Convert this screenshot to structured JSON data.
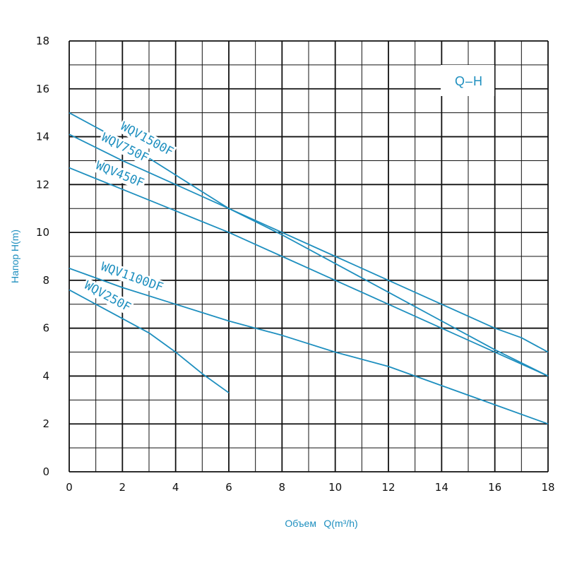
{
  "chart_data": {
    "type": "line",
    "title": "",
    "xlabel": "Объем",
    "xlabel_unit": "Q(m³/h)",
    "ylabel": "Напор H(m)",
    "xlim": [
      0,
      18
    ],
    "ylim": [
      0,
      18
    ],
    "x_ticks": [
      "0",
      "2",
      "4",
      "6",
      "8",
      "10",
      "12",
      "14",
      "16",
      "18"
    ],
    "y_ticks": [
      "0",
      "2",
      "4",
      "6",
      "8",
      "10",
      "12",
      "14",
      "16",
      "18"
    ],
    "grid": true,
    "annotation": "Q–H",
    "colors": {
      "series": "#1e8fbf",
      "grid": "#111111",
      "text": "#111111",
      "label": "#1e8fbf"
    },
    "series": [
      {
        "name": "WQV1500F",
        "points": [
          [
            0,
            15.0
          ],
          [
            2,
            13.8
          ],
          [
            4,
            12.4
          ],
          [
            6,
            11.0
          ],
          [
            8,
            10.0
          ],
          [
            10,
            9.0
          ],
          [
            12,
            8.0
          ],
          [
            14,
            7.0
          ],
          [
            16,
            6.0
          ],
          [
            17,
            5.6
          ],
          [
            18,
            5.0
          ]
        ]
      },
      {
        "name": "WQV750F",
        "points": [
          [
            0,
            14.1
          ],
          [
            2,
            13.0
          ],
          [
            4,
            12.0
          ],
          [
            6,
            11.0
          ],
          [
            8,
            9.9
          ],
          [
            10,
            8.7
          ],
          [
            12,
            7.5
          ],
          [
            14,
            6.3
          ],
          [
            16,
            5.1
          ],
          [
            18,
            4.0
          ]
        ]
      },
      {
        "name": "WQV450F",
        "points": [
          [
            0,
            12.7
          ],
          [
            2,
            11.8
          ],
          [
            4,
            10.9
          ],
          [
            6,
            10.0
          ],
          [
            8,
            9.0
          ],
          [
            10,
            8.0
          ],
          [
            12,
            7.0
          ],
          [
            14,
            6.0
          ],
          [
            16,
            5.0
          ],
          [
            18,
            4.0
          ]
        ]
      },
      {
        "name": "WQV1100DF",
        "points": [
          [
            0,
            8.5
          ],
          [
            2,
            7.7
          ],
          [
            4,
            7.0
          ],
          [
            6,
            6.3
          ],
          [
            8,
            5.7
          ],
          [
            10,
            5.0
          ],
          [
            12,
            4.4
          ],
          [
            14,
            3.6
          ],
          [
            16,
            2.8
          ],
          [
            18,
            2.0
          ]
        ]
      },
      {
        "name": "WQV250F",
        "points": [
          [
            0,
            7.6
          ],
          [
            1,
            7.0
          ],
          [
            2,
            6.4
          ],
          [
            3,
            5.8
          ],
          [
            4,
            5.0
          ],
          [
            5,
            4.1
          ],
          [
            6,
            3.3
          ]
        ]
      }
    ]
  }
}
